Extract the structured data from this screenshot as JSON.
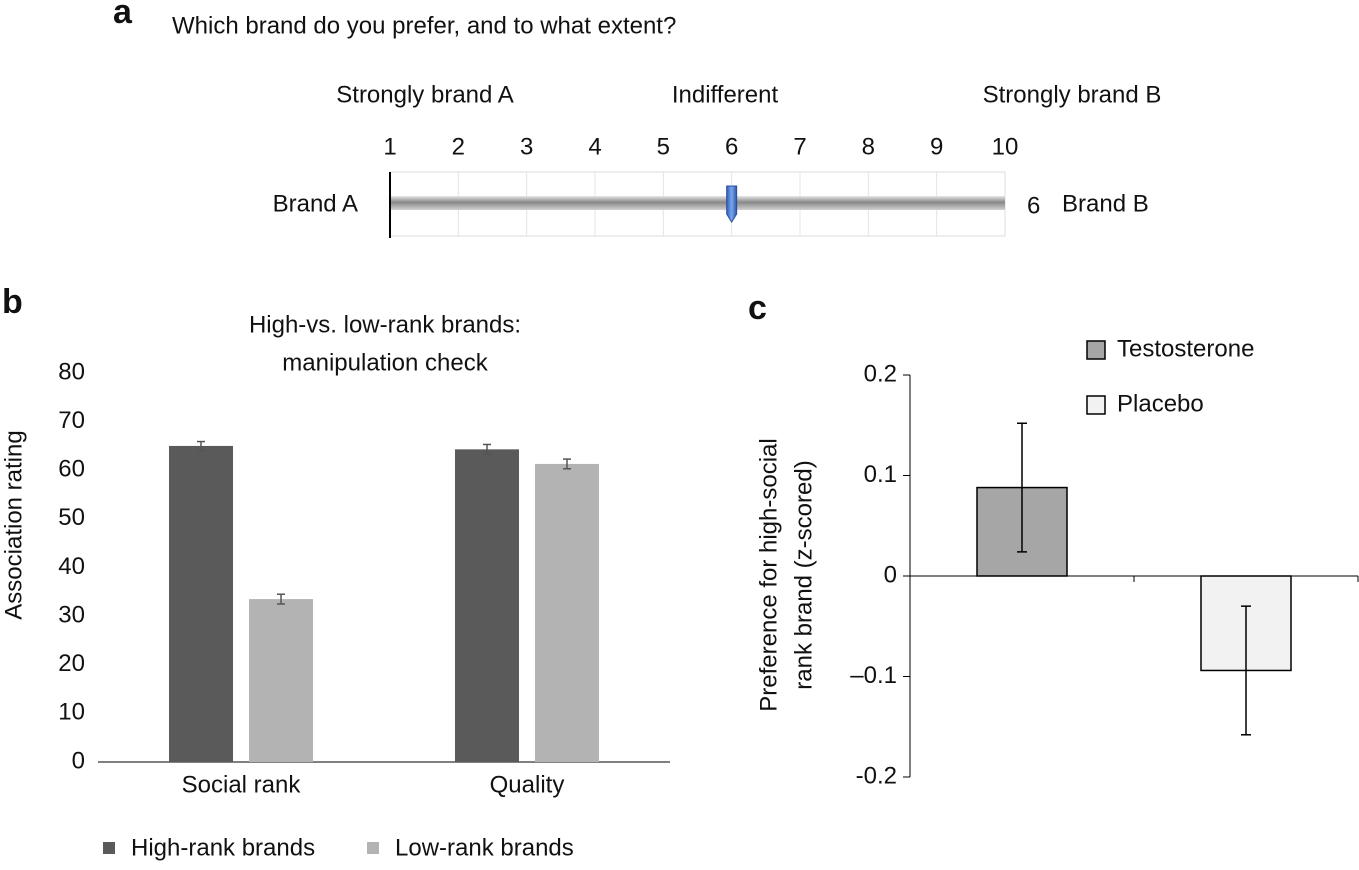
{
  "panel_labels": [
    "a",
    "b",
    "c"
  ],
  "survey": {
    "question": "Which brand do you prefer, and to what extent?",
    "anchors": [
      "Strongly brand A",
      "Indifferent",
      "Strongly brand B"
    ],
    "scale_ticks": [
      1,
      2,
      3,
      4,
      5,
      6,
      7,
      8,
      9,
      10
    ],
    "left_label": "Brand A",
    "value": 6,
    "right_label": "Brand B"
  },
  "chart_data": [
    {
      "type": "bar",
      "title": [
        "High-vs. low-rank brands:",
        "manipulation check"
      ],
      "ylabel": "Association rating",
      "categories": [
        "Social rank",
        "Quality"
      ],
      "series": [
        {
          "name": "High-rank brands",
          "color": "#5a5a5a",
          "values": [
            65,
            64.3
          ],
          "errors": [
            0.9,
            1.0
          ]
        },
        {
          "name": "Low-rank brands",
          "color": "#b3b3b3",
          "values": [
            33.5,
            61.3
          ],
          "errors": [
            1.0,
            1.0
          ]
        }
      ],
      "ylim": [
        0,
        80
      ],
      "yticks": [
        0,
        10,
        20,
        30,
        40,
        50,
        60,
        70,
        80
      ],
      "legend": "bottom"
    },
    {
      "type": "bar",
      "ylabel": [
        "Preference for high-social",
        "rank brand (z-scored)"
      ],
      "categories": [
        null,
        null
      ],
      "series": [
        {
          "name": "Testosterone",
          "color": "#a6a6a6",
          "values": [
            0.088,
            null
          ],
          "errors": [
            0.064,
            null
          ]
        },
        {
          "name": "Placebo",
          "color": "#f2f2f2",
          "values": [
            null,
            -0.094
          ],
          "errors": [
            null,
            0.064
          ]
        }
      ],
      "ylim": [
        -0.2,
        0.2
      ],
      "yticks": [
        -0.2,
        {
          "value": -0.1,
          "label": "–0.1"
        },
        0,
        0.1,
        0.2
      ],
      "legend": "top-right"
    }
  ]
}
